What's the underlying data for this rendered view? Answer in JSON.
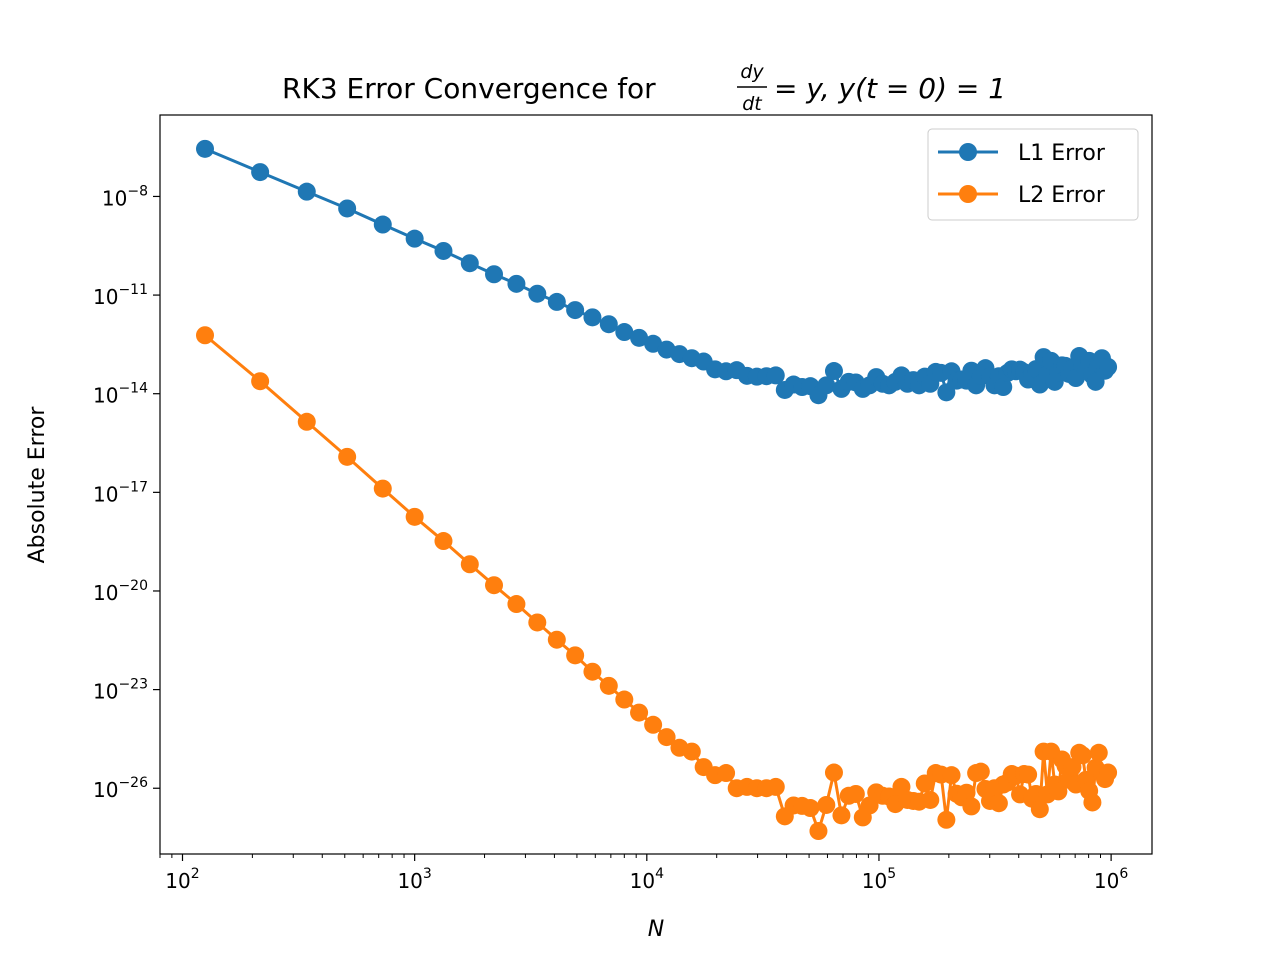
{
  "chart_data": {
    "type": "line",
    "title": {
      "prefix": "RK3 Error Convergence for ",
      "frac_num": "dy",
      "frac_den": "dt",
      "suffix": "= y, y(t = 0) = 1"
    },
    "xlabel": "N",
    "ylabel": "Absolute Error",
    "x_scale": "log",
    "y_scale": "log",
    "xlim": [
      80,
      1500000
    ],
    "ylim": [
      1e-28,
      3e-06
    ],
    "x_ticks": [
      {
        "base": "10",
        "exp": "2",
        "value": 100
      },
      {
        "base": "10",
        "exp": "3",
        "value": 1000
      },
      {
        "base": "10",
        "exp": "4",
        "value": 10000
      },
      {
        "base": "10",
        "exp": "5",
        "value": 100000
      },
      {
        "base": "10",
        "exp": "6",
        "value": 1000000
      }
    ],
    "y_ticks": [
      {
        "base": "10",
        "exp": "−8",
        "value": 1e-08
      },
      {
        "base": "10",
        "exp": "−11",
        "value": 1e-11
      },
      {
        "base": "10",
        "exp": "−14",
        "value": 1e-14
      },
      {
        "base": "10",
        "exp": "−17",
        "value": 1e-17
      },
      {
        "base": "10",
        "exp": "−20",
        "value": 1e-20
      },
      {
        "base": "10",
        "exp": "−23",
        "value": 1e-23
      },
      {
        "base": "10",
        "exp": "−26",
        "value": 1e-26
      }
    ],
    "grid": false,
    "legend_position": "top-right",
    "x": [
      125,
      216,
      343,
      512,
      729,
      1000,
      1331,
      1728,
      2197,
      2744,
      3375,
      4096,
      4913,
      5832,
      6859,
      8000,
      9261,
      10648,
      12167,
      13824,
      15625,
      17576,
      19683,
      21952,
      24389,
      27000,
      29791,
      32768,
      35937,
      39304,
      42875,
      46656,
      50653,
      54872,
      59319,
      64000,
      68921,
      74088,
      79507,
      85184,
      91125,
      97336,
      103823,
      110592,
      117649,
      125000,
      132651,
      140608,
      148877,
      157464,
      166375,
      175616,
      185193,
      195112,
      205379,
      216000,
      226981,
      238328,
      250047,
      262144,
      274625,
      287496,
      300763,
      314432,
      328509,
      343000,
      357911,
      373248,
      389017,
      405224,
      421875,
      438976,
      456533,
      474552,
      493039,
      512000,
      531441,
      551368,
      571787,
      592704,
      614125,
      636056,
      658503,
      681472,
      704969,
      729000,
      753571,
      778688,
      804357,
      830584,
      857375,
      884736,
      912673,
      941192,
      970299
    ],
    "series": [
      {
        "name": "L1 Error",
        "color": "#1f77b4",
        "values": [
          2.8e-07,
          5.5e-08,
          1.4e-08,
          4.3e-09,
          1.4e-09,
          5.2e-10,
          2.2e-10,
          9.3e-11,
          4.3e-11,
          2.2e-11,
          1.1e-11,
          6.2e-12,
          3.5e-12,
          2.1e-12,
          1.3e-12,
          7.5e-13,
          5e-13,
          3.3e-13,
          2.2e-13,
          1.6e-13,
          1.2e-13,
          9.5e-14,
          5.5e-14,
          4.8e-14,
          5.2e-14,
          3.5e-14,
          3.3e-14,
          3.4e-14,
          3.6e-14,
          1.3e-14,
          1.9e-14,
          1.6e-14,
          1.7e-14,
          9e-15,
          1.8e-14,
          4.9e-14,
          1.4e-14,
          2.3e-14,
          2.2e-14,
          1.4e-14,
          1.8e-14,
          3.2e-14,
          2e-14,
          1.8e-14,
          2.3e-14,
          3.6e-14,
          2e-14,
          2.6e-14,
          1.8e-14,
          3.3e-14,
          2e-14,
          4.6e-14,
          4.3e-14,
          1.1e-14,
          4.8e-14,
          2.5e-14,
          2.7e-14,
          2.5e-14,
          5e-14,
          1.8e-14,
          3.5e-14,
          6e-14,
          3.3e-14,
          1.8e-14,
          3.4e-14,
          1.6e-14,
          4.3e-14,
          5.5e-14,
          4.8e-14,
          5.4e-14,
          4.5e-14,
          2.7e-14,
          4.2e-14,
          5.6e-14,
          1.9e-14,
          1.3e-13,
          3.8e-14,
          1e-13,
          2.3e-14,
          4.5e-14,
          7.3e-14,
          7e-14,
          4e-14,
          6e-14,
          3e-14,
          1.4e-13,
          7.5e-14,
          5e-14,
          1e-13,
          3.6e-14,
          2.3e-14,
          8e-14,
          1.2e-13,
          5e-14,
          6.5e-14
        ]
      },
      {
        "name": "L2 Error",
        "color": "#ff7f0e",
        "values": [
          6e-13,
          2.4e-14,
          1.4e-15,
          1.2e-16,
          1.3e-17,
          1.8e-18,
          3.3e-19,
          6.5e-20,
          1.5e-20,
          4e-21,
          1.1e-21,
          3.3e-22,
          1.1e-22,
          3.5e-23,
          1.3e-23,
          5e-24,
          2e-24,
          8.5e-25,
          3.6e-25,
          1.7e-25,
          1.3e-25,
          4.4e-26,
          2.5e-26,
          2.9e-26,
          1e-26,
          1.1e-26,
          1e-26,
          1e-26,
          1.1e-26,
          1.4e-27,
          3e-27,
          2.9e-27,
          2.5e-27,
          5e-28,
          3.1e-27,
          3e-26,
          1.5e-27,
          5.9e-27,
          6.7e-27,
          1.3e-27,
          3e-27,
          7.5e-27,
          5.9e-27,
          5.6e-27,
          3.3e-27,
          1.1e-26,
          4.4e-27,
          4.1e-27,
          3.9e-27,
          1.4e-26,
          4.4e-27,
          2.9e-26,
          2.6e-26,
          1.1e-27,
          2.5e-26,
          6.8e-27,
          5.3e-27,
          7.3e-27,
          2.8e-27,
          2.9e-26,
          3.2e-26,
          9.5e-27,
          4.1e-27,
          1e-26,
          3.5e-27,
          1.3e-26,
          1.5e-26,
          2.7e-26,
          2.4e-26,
          6.5e-27,
          2.7e-26,
          2.6e-26,
          4.8e-27,
          6.7e-27,
          2.3e-27,
          1.3e-25,
          6.5e-27,
          1.3e-25,
          1.3e-26,
          8e-27,
          7.5e-26,
          4.8e-26,
          1.8e-26,
          4.4e-26,
          1.3e-26,
          1.2e-25,
          1e-25,
          1.8e-26,
          8.3e-27,
          3.7e-27,
          4.2e-26,
          1.2e-25,
          2.9e-26,
          1.9e-26,
          3e-26
        ]
      }
    ]
  }
}
